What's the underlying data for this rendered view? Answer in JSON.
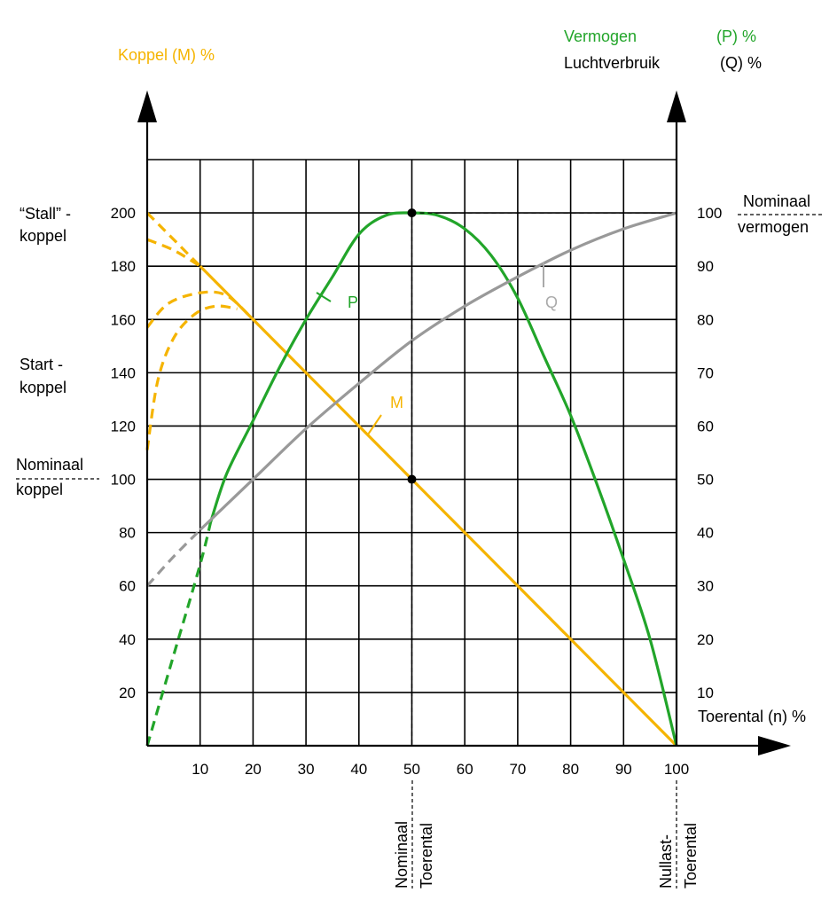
{
  "chart_data": {
    "type": "line",
    "left_axis": {
      "title": "Koppel (M) %",
      "ticks": [
        "20",
        "40",
        "60",
        "80",
        "100",
        "120",
        "140",
        "160",
        "180",
        "200"
      ],
      "range": [
        0,
        220
      ]
    },
    "right_axis": {
      "title_line1_name": "Vermogen",
      "title_line1_unit": "(P) %",
      "title_line2_name": "Luchtverbruik",
      "title_line2_unit": "(Q) %",
      "ticks": [
        "10",
        "20",
        "30",
        "40",
        "50",
        "60",
        "70",
        "80",
        "90",
        "100"
      ],
      "range": [
        0,
        110
      ]
    },
    "x_axis": {
      "title": "Toerental (n) %",
      "ticks": [
        "10",
        "20",
        "30",
        "40",
        "50",
        "60",
        "70",
        "80",
        "90",
        "100"
      ],
      "range": [
        0,
        100
      ]
    },
    "annotations": {
      "stall_line1": "“Stall” -",
      "stall_line2": "koppel",
      "start_line1": "Start -",
      "start_line2": "koppel",
      "nom_koppel_line1": "Nominaal",
      "nom_koppel_line2": "koppel",
      "nom_vermogen_line1": "Nominaal",
      "nom_vermogen_line2": "vermogen",
      "nom_toerental_line1": "Nominaal",
      "nom_toerental_line2": "Toerental",
      "nullast_line1": "Nullast-",
      "nullast_line2": "Toerental"
    },
    "series": [
      {
        "name": "M",
        "axis": "left",
        "color": "#F5B400",
        "x": [
          10,
          100
        ],
        "y": [
          180,
          0
        ],
        "dashed_start": [
          {
            "x": [
              0,
              10
            ],
            "y": [
              200,
              180
            ]
          },
          {
            "x": [
              0,
              5,
              10
            ],
            "y": [
              190,
              186,
              180
            ]
          },
          {
            "x": [
              0,
              4,
              10,
              15,
              20
            ],
            "y": [
              157,
              166,
              170,
              169,
              160
            ]
          },
          {
            "x": [
              0,
              2,
              5,
              9,
              13,
              17
            ],
            "y": [
              111,
              137,
              153,
              162,
              165,
              164
            ]
          }
        ]
      },
      {
        "name": "P",
        "axis": "right",
        "color": "#22A52A",
        "x": [
          12,
          15,
          20,
          25,
          30,
          35,
          40,
          45,
          50,
          55,
          60,
          65,
          70,
          75,
          80,
          85,
          90,
          95,
          100
        ],
        "y": [
          42,
          51,
          61,
          71,
          80,
          88,
          96,
          99.5,
          100,
          99.5,
          97,
          92,
          84,
          73,
          62,
          49,
          35,
          20,
          0
        ],
        "dashed_start": [
          {
            "x": [
              0,
              5,
              10,
              12
            ],
            "y": [
              0,
              17,
              34,
              42
            ]
          }
        ]
      },
      {
        "name": "Q",
        "axis": "right",
        "color": "#999999",
        "x": [
          10,
          20,
          30,
          40,
          50,
          60,
          70,
          80,
          90,
          100
        ],
        "y": [
          40.5,
          50,
          59.5,
          68,
          76,
          82.5,
          88,
          93,
          97,
          100
        ],
        "dashed_start": [
          {
            "x": [
              0,
              5,
              10
            ],
            "y": [
              30,
              35.5,
              40.5
            ]
          }
        ]
      }
    ],
    "points": [
      {
        "x": 50,
        "left": 200
      },
      {
        "x": 50,
        "left": 100
      }
    ]
  },
  "colors": {
    "koppel": "#F5B400",
    "vermogen": "#22A52A",
    "lucht": "#999999",
    "axis": "#000000"
  }
}
